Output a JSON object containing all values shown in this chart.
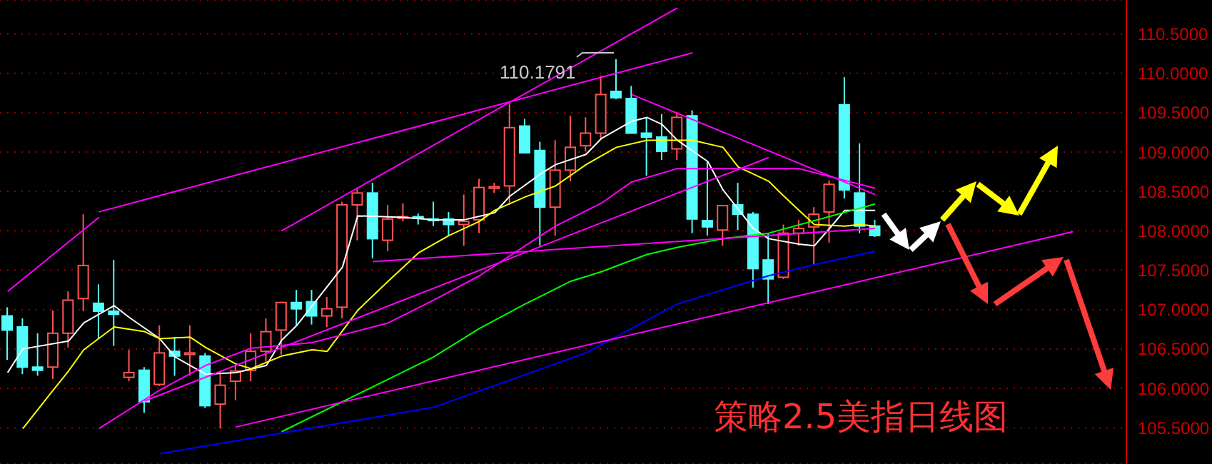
{
  "chart_data": {
    "type": "candlestick",
    "title": "策略2.5美指日线图",
    "categories": [
      null,
      null,
      null,
      null,
      null,
      null,
      null,
      null,
      null,
      null,
      null,
      null,
      null,
      null,
      null,
      null,
      null,
      null,
      null,
      null,
      null,
      null,
      null,
      null,
      null,
      null,
      null,
      null,
      null,
      null,
      null,
      null,
      null,
      null,
      null,
      null,
      null,
      null,
      null,
      null,
      null,
      null,
      null,
      null,
      null,
      null,
      null,
      null,
      null,
      null,
      null,
      null,
      null,
      null,
      null,
      null,
      null,
      null,
      null,
      null,
      null,
      null,
      null,
      null,
      null,
      null,
      null,
      null,
      null,
      null,
      null,
      null,
      null,
      null
    ],
    "ohlc": [
      [
        106.92,
        107.03,
        106.36,
        106.74
      ],
      [
        106.78,
        106.89,
        106.18,
        106.27
      ],
      [
        106.27,
        106.7,
        106.16,
        106.23
      ],
      [
        106.27,
        106.99,
        106.12,
        106.7
      ],
      [
        106.7,
        107.23,
        106.52,
        107.12
      ],
      [
        107.14,
        108.21,
        106.98,
        107.56
      ],
      [
        107.08,
        107.32,
        106.63,
        106.98
      ],
      [
        106.98,
        107.63,
        106.54,
        106.94
      ],
      [
        106.14,
        106.49,
        106.09,
        106.2
      ],
      [
        106.23,
        106.27,
        105.69,
        105.83
      ],
      [
        106.05,
        106.8,
        106.03,
        106.45
      ],
      [
        106.47,
        106.65,
        106.16,
        106.41
      ],
      [
        106.43,
        106.8,
        106.16,
        106.45
      ],
      [
        106.41,
        106.45,
        105.75,
        105.78
      ],
      [
        105.8,
        106.22,
        105.49,
        106.04
      ],
      [
        106.09,
        106.29,
        105.85,
        106.22
      ],
      [
        106.23,
        106.7,
        106.09,
        106.47
      ],
      [
        106.47,
        106.89,
        106.34,
        106.72
      ],
      [
        106.74,
        107.1,
        106.43,
        107.09
      ],
      [
        107.09,
        107.25,
        106.8,
        107.01
      ],
      [
        107.1,
        107.25,
        106.81,
        106.92
      ],
      [
        106.92,
        107.16,
        106.78,
        107.01
      ],
      [
        107.03,
        108.37,
        106.89,
        108.33
      ],
      [
        108.33,
        108.55,
        107.88,
        108.48
      ],
      [
        108.48,
        108.61,
        107.65,
        107.9
      ],
      [
        107.88,
        108.33,
        107.74,
        108.15
      ],
      [
        108.16,
        108.35,
        108.12,
        108.18
      ],
      [
        108.18,
        108.22,
        108.08,
        108.16
      ],
      [
        108.15,
        108.37,
        108.06,
        108.13
      ],
      [
        108.15,
        108.24,
        107.94,
        108.08
      ],
      [
        108.08,
        108.46,
        107.81,
        108.12
      ],
      [
        108.14,
        108.66,
        107.97,
        108.55
      ],
      [
        108.54,
        108.61,
        108.48,
        108.56
      ],
      [
        108.57,
        109.62,
        108.33,
        109.31
      ],
      [
        109.33,
        109.42,
        108.99,
        108.99
      ],
      [
        109.02,
        109.13,
        107.81,
        108.3
      ],
      [
        108.3,
        109.15,
        107.94,
        108.77
      ],
      [
        108.77,
        109.46,
        108.63,
        109.06
      ],
      [
        109.08,
        109.44,
        109.01,
        109.24
      ],
      [
        109.24,
        109.97,
        109.17,
        109.73
      ],
      [
        109.77,
        110.1791,
        109.67,
        109.69
      ],
      [
        109.68,
        109.84,
        109.24,
        109.24
      ],
      [
        109.24,
        109.44,
        108.7,
        109.19
      ],
      [
        109.19,
        109.48,
        108.9,
        109.01
      ],
      [
        109.04,
        109.51,
        108.9,
        109.44
      ],
      [
        109.46,
        109.53,
        107.97,
        108.15
      ],
      [
        108.13,
        108.88,
        107.94,
        108.05
      ],
      [
        108.01,
        108.33,
        107.81,
        108.32
      ],
      [
        108.33,
        108.61,
        108.01,
        108.21
      ],
      [
        108.21,
        108.24,
        107.28,
        107.52
      ],
      [
        107.63,
        107.97,
        107.07,
        107.39
      ],
      [
        107.41,
        108.08,
        107.39,
        107.97
      ],
      [
        107.97,
        108.14,
        107.81,
        108.03
      ],
      [
        108.05,
        108.3,
        107.56,
        108.21
      ],
      [
        108.24,
        108.64,
        107.85,
        108.59
      ],
      [
        109.6,
        109.95,
        108.41,
        108.52
      ],
      [
        108.48,
        109.11,
        107.97,
        108.06
      ],
      [
        108.06,
        108.14,
        107.92,
        107.94
      ],
      null,
      null,
      null,
      null,
      null,
      null,
      null,
      null,
      null,
      null,
      null,
      null,
      null,
      null,
      null,
      null
    ],
    "colors": [
      "#54fcfc",
      "#54fcfc",
      "#54fcfc",
      "#ff5454",
      "#ff5454",
      "#ff5454",
      "#54fcfc",
      "#54fcfc",
      "#ff5454",
      "#54fcfc",
      "#ff5454",
      "#54fcfc",
      "#ff5454",
      "#54fcfc",
      "#ff5454",
      "#ff5454",
      "#ff5454",
      "#ff5454",
      "#ff5454",
      "#54fcfc",
      "#54fcfc",
      "#ff5454",
      "#ff5454",
      "#ff5454",
      "#54fcfc",
      "#ff5454",
      "#ff5454",
      "#54fcfc",
      "#54fcfc",
      "#54fcfc",
      "#ff5454",
      "#ff5454",
      "#ff5454",
      "#ff5454",
      "#54fcfc",
      "#54fcfc",
      "#ff5454",
      "#ff5454",
      "#ff5454",
      "#ff5454",
      "#54fcfc",
      "#54fcfc",
      "#54fcfc",
      "#54fcfc",
      "#ff5454",
      "#54fcfc",
      "#54fcfc",
      "#ff5454",
      "#54fcfc",
      "#54fcfc",
      "#54fcfc",
      "#ff5454",
      "#ff5454",
      "#ff5454",
      "#ff5454",
      "#54fcfc",
      "#54fcfc",
      "#54fcfc",
      null,
      null,
      null,
      null,
      null,
      null,
      null,
      null,
      null,
      null,
      null,
      null,
      null,
      null,
      null,
      null
    ],
    "series": [
      {
        "type": "line",
        "color": "#ffffff",
        "values": [
          106.2,
          106.5,
          null,
          null,
          106.6,
          106.83,
          null,
          107.05,
          106.9,
          null,
          106.63,
          106.4,
          null,
          106.18,
          null,
          106.2,
          null,
          106.29,
          106.61,
          106.8,
          null,
          null,
          107.54,
          108.19,
          null,
          null,
          108.17,
          null,
          108.14,
          null,
          108.14,
          null,
          108.23,
          108.44,
          null,
          108.72,
          108.84,
          null,
          108.97,
          109.17,
          null,
          109.39,
          109.44,
          109.35,
          109.15,
          null,
          108.88,
          108.52,
          null,
          108.03,
          107.9,
          null,
          107.83,
          107.81,
          108.03,
          108.26,
          108.26,
          108.26,
          null,
          null,
          null,
          null,
          null,
          null,
          null,
          null,
          null,
          null,
          null,
          null,
          null,
          null,
          null,
          null
        ]
      },
      {
        "type": "line",
        "color": "#ffff00",
        "values": [
          null,
          105.49,
          null,
          105.98,
          106.22,
          106.49,
          null,
          106.78,
          null,
          106.72,
          106.63,
          null,
          106.65,
          106.52,
          null,
          106.31,
          106.25,
          null,
          106.41,
          null,
          106.49,
          106.47,
          null,
          106.99,
          null,
          107.36,
          null,
          107.72,
          null,
          107.94,
          null,
          108.12,
          108.26,
          null,
          108.43,
          null,
          108.57,
          null,
          108.84,
          null,
          109.06,
          null,
          109.15,
          null,
          null,
          109.15,
          null,
          109.06,
          108.81,
          null,
          108.63,
          108.44,
          108.26,
          108.08,
          null,
          108.06,
          108.08,
          108.06,
          null,
          null,
          null,
          null,
          null,
          null,
          null,
          null,
          null,
          null,
          null,
          null,
          null,
          null,
          null,
          null
        ]
      },
      {
        "type": "line",
        "color": "#ff00ff",
        "values": [
          null,
          null,
          null,
          null,
          null,
          null,
          105.49,
          null,
          null,
          null,
          105.98,
          null,
          null,
          106.29,
          null,
          null,
          106.51,
          null,
          null,
          null,
          106.58,
          null,
          null,
          null,
          null,
          106.83,
          null,
          null,
          107.12,
          null,
          null,
          107.43,
          null,
          null,
          107.81,
          null,
          108.06,
          null,
          null,
          108.35,
          null,
          108.62,
          null,
          null,
          108.79,
          null,
          null,
          null,
          null,
          null,
          null,
          null,
          108.79,
          null,
          null,
          null,
          null,
          108.54,
          null,
          null,
          null,
          null,
          null,
          null,
          null,
          null,
          null,
          null,
          null,
          null,
          null,
          null,
          null,
          null
        ]
      },
      {
        "type": "line",
        "color": "#00ff00",
        "values": [
          null,
          null,
          null,
          null,
          null,
          null,
          null,
          null,
          null,
          null,
          null,
          null,
          null,
          null,
          null,
          null,
          null,
          null,
          105.45,
          null,
          null,
          null,
          null,
          null,
          null,
          null,
          null,
          null,
          106.4,
          null,
          null,
          106.76,
          null,
          null,
          107.07,
          null,
          null,
          107.36,
          null,
          107.48,
          null,
          null,
          107.7,
          null,
          107.79,
          null,
          null,
          107.9,
          null,
          null,
          107.97,
          null,
          null,
          null,
          null,
          null,
          null,
          108.34,
          null,
          null,
          null,
          null,
          null,
          null,
          null,
          null,
          null,
          null,
          null,
          null,
          null,
          null,
          null,
          null
        ]
      },
      {
        "type": "line",
        "color": "#0000ff",
        "values": [
          null,
          null,
          null,
          null,
          null,
          null,
          null,
          null,
          null,
          null,
          105.17,
          null,
          null,
          null,
          null,
          null,
          null,
          null,
          null,
          null,
          null,
          null,
          null,
          null,
          null,
          null,
          null,
          null,
          105.76,
          null,
          null,
          null,
          null,
          null,
          null,
          null,
          null,
          null,
          106.45,
          null,
          null,
          null,
          null,
          null,
          107.07,
          null,
          null,
          null,
          null,
          null,
          107.43,
          null,
          null,
          107.57,
          null,
          null,
          null,
          107.74,
          null,
          null,
          null,
          null,
          null,
          null,
          null,
          null,
          null,
          null,
          null,
          null,
          null,
          null,
          null,
          null
        ]
      },
      {
        "type": "line",
        "color": "#ff00ff",
        "values": [
          107.23,
          null,
          null,
          null,
          null,
          null,
          108.17,
          null,
          null,
          null,
          null,
          null,
          null,
          null,
          null,
          null,
          null,
          null,
          null,
          null,
          null,
          null,
          null,
          null,
          null,
          null,
          null,
          null,
          null,
          null,
          null,
          null,
          null,
          null,
          null,
          null,
          null,
          null,
          null,
          null,
          null,
          null,
          null,
          null,
          null,
          null,
          null,
          null,
          null,
          null,
          null,
          null,
          null,
          null,
          null,
          null,
          null,
          null,
          null,
          null,
          null,
          null,
          null,
          null,
          null,
          null,
          null,
          null,
          null,
          null,
          null,
          null,
          null,
          null
        ]
      },
      {
        "type": "line",
        "color": "#ff00ff",
        "values": [
          null,
          null,
          null,
          null,
          null,
          null,
          108.24,
          null,
          null,
          null,
          null,
          null,
          null,
          null,
          null,
          null,
          null,
          null,
          null,
          null,
          null,
          null,
          null,
          null,
          null,
          null,
          null,
          null,
          null,
          null,
          null,
          null,
          null,
          null,
          null,
          null,
          null,
          null,
          null,
          null,
          null,
          null,
          null,
          null,
          null,
          110.26,
          null,
          null,
          null,
          null,
          null,
          null,
          null,
          null,
          null,
          null,
          null,
          null,
          null,
          null,
          null,
          null,
          null,
          null,
          null,
          null,
          null,
          null,
          null,
          null,
          null,
          null,
          null,
          null
        ]
      },
      {
        "type": "line",
        "color": "#ff00ff",
        "values": [
          null,
          null,
          null,
          null,
          null,
          null,
          null,
          null,
          null,
          null,
          null,
          null,
          null,
          null,
          null,
          null,
          null,
          null,
          108.0,
          null,
          null,
          null,
          null,
          null,
          null,
          null,
          null,
          null,
          null,
          null,
          null,
          null,
          null,
          null,
          null,
          null,
          null,
          null,
          null,
          null,
          null,
          null,
          null,
          null,
          110.83,
          null,
          null,
          null,
          null,
          null,
          null,
          null,
          null,
          null,
          null,
          null,
          null,
          null,
          null,
          null,
          null,
          null,
          null,
          null,
          null,
          null,
          null,
          null,
          null,
          null,
          null,
          null,
          null,
          null
        ]
      },
      {
        "type": "line",
        "color": "#ff00ff",
        "values": [
          null,
          null,
          null,
          null,
          null,
          null,
          null,
          null,
          null,
          null,
          null,
          null,
          null,
          null,
          null,
          null,
          null,
          null,
          null,
          null,
          null,
          null,
          null,
          null,
          null,
          null,
          null,
          null,
          null,
          null,
          null,
          null,
          null,
          null,
          null,
          null,
          null,
          null,
          null,
          null,
          null,
          109.73,
          null,
          null,
          null,
          null,
          null,
          null,
          null,
          null,
          null,
          null,
          null,
          null,
          null,
          null,
          null,
          108.46,
          null,
          null,
          null,
          null,
          null,
          null,
          null,
          null,
          null,
          null,
          null,
          null,
          null,
          null,
          null,
          null
        ]
      },
      {
        "type": "line",
        "color": "#ff00ff",
        "values": [
          null,
          null,
          null,
          null,
          null,
          null,
          null,
          null,
          null,
          null,
          null,
          null,
          null,
          null,
          null,
          null,
          null,
          null,
          null,
          null,
          null,
          null,
          null,
          null,
          107.61,
          null,
          null,
          null,
          null,
          null,
          null,
          null,
          null,
          null,
          null,
          null,
          null,
          null,
          null,
          null,
          null,
          null,
          null,
          null,
          null,
          null,
          null,
          null,
          null,
          null,
          null,
          null,
          null,
          null,
          null,
          null,
          null,
          108.03,
          null,
          null,
          null,
          null,
          null,
          null,
          null,
          null,
          null,
          null,
          null,
          null,
          null,
          null,
          null,
          null
        ]
      },
      {
        "type": "line",
        "color": "#ff00ff",
        "values": [
          null,
          null,
          null,
          null,
          null,
          null,
          null,
          null,
          null,
          null,
          null,
          null,
          null,
          null,
          null,
          105.51,
          null,
          null,
          null,
          null,
          null,
          null,
          null,
          null,
          null,
          null,
          null,
          null,
          null,
          null,
          null,
          null,
          null,
          null,
          null,
          null,
          null,
          null,
          null,
          null,
          null,
          null,
          null,
          null,
          null,
          null,
          null,
          null,
          null,
          null,
          null,
          null,
          null,
          null,
          null,
          null,
          null,
          null,
          null,
          null,
          null,
          null,
          null,
          null,
          null,
          null,
          null,
          null,
          null,
          null,
          107.99,
          null,
          null,
          null
        ]
      },
      {
        "type": "line",
        "color": "#ff00ff",
        "values": [
          null,
          null,
          null,
          null,
          null,
          null,
          null,
          null,
          null,
          105.84,
          null,
          null,
          null,
          null,
          null,
          null,
          null,
          null,
          null,
          null,
          null,
          null,
          null,
          null,
          null,
          null,
          null,
          null,
          null,
          null,
          null,
          null,
          null,
          null,
          null,
          null,
          null,
          null,
          null,
          null,
          null,
          null,
          null,
          null,
          null,
          null,
          null,
          null,
          null,
          null,
          108.93,
          null,
          null,
          null,
          null,
          null,
          null,
          null,
          null,
          null,
          null,
          null,
          null,
          null,
          null,
          null,
          null,
          null,
          null,
          null,
          null,
          null,
          null,
          null
        ]
      }
    ],
    "ylim": [
      105.04,
      110.93
    ],
    "yticks": [
      {
        "value": 105.5,
        "label": "105.5000"
      },
      {
        "value": 106,
        "label": "106.0000"
      },
      {
        "value": 106.5,
        "label": "106.5000"
      },
      {
        "value": 107,
        "label": "107.0000"
      },
      {
        "value": 107.5,
        "label": "107.5000"
      },
      {
        "value": 108,
        "label": "108.0000"
      },
      {
        "value": 108.5,
        "label": "108.5000"
      },
      {
        "value": 109,
        "label": "109.0000"
      },
      {
        "value": 109.5,
        "label": "109.5000"
      },
      {
        "value": 110,
        "label": "110.0000"
      },
      {
        "value": 110.5,
        "label": "110.5000"
      }
    ],
    "annotations": [
      "110.1791"
    ],
    "grid": "y",
    "tick_labels": "y"
  }
}
